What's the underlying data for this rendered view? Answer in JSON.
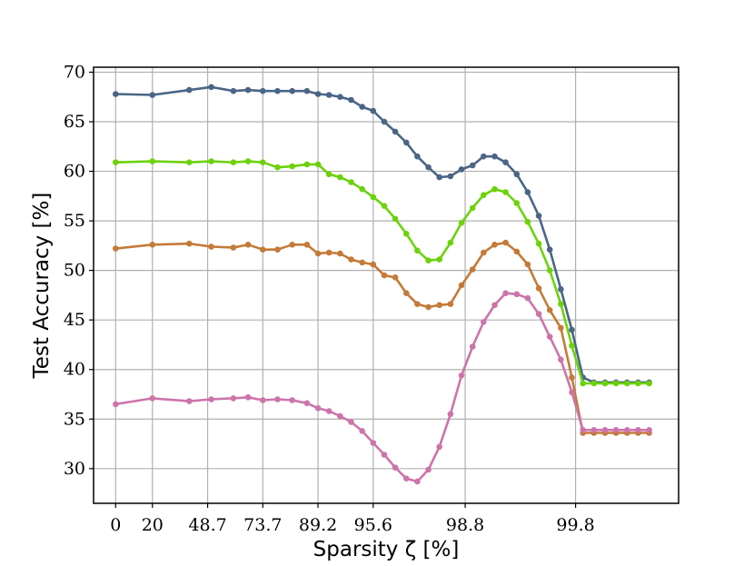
{
  "chart_data": {
    "type": "line",
    "xlabel": "Sparsity ζ [%]",
    "ylabel": "Test Accuracy [%]",
    "x_tick_labels": [
      "0",
      "20",
      "48.7",
      "73.7",
      "89.2",
      "95.6",
      "98.8",
      "99.8"
    ],
    "x_tick_index": [
      0,
      2,
      5,
      8,
      11,
      14,
      19,
      25
    ],
    "xlim": [
      -1.2,
      30.6
    ],
    "ylim": [
      26.5,
      70.5
    ],
    "y_ticks": [
      30,
      35,
      40,
      45,
      50,
      55,
      60,
      65,
      70
    ],
    "grid": true,
    "legend": "none",
    "x_index": [
      0,
      2,
      4,
      5.2,
      6.4,
      7.2,
      8,
      8.8,
      9.6,
      10.4,
      11,
      11.6,
      12.2,
      12.8,
      13.4,
      14,
      14.6,
      15.2,
      15.8,
      16.4,
      17,
      17.6,
      18.2,
      18.8,
      19.4,
      20,
      20.6,
      21.2,
      21.8,
      22.4,
      23,
      23.6,
      24.2,
      24.8,
      25.4,
      26,
      26.6,
      27.2,
      27.8,
      28.4,
      29
    ],
    "series": [
      {
        "color": "#4a6585",
        "values": [
          67.8,
          67.7,
          68.2,
          68.5,
          68.1,
          68.2,
          68.1,
          68.1,
          68.1,
          68.1,
          67.8,
          67.7,
          67.5,
          67.2,
          66.5,
          66.1,
          65.0,
          64.0,
          62.9,
          61.5,
          60.4,
          59.4,
          59.5,
          60.2,
          60.6,
          61.5,
          61.5,
          60.9,
          59.7,
          57.9,
          55.5,
          52.1,
          48.1,
          44.0,
          39.2,
          38.7,
          38.7,
          38.7,
          38.7,
          38.7,
          38.7
        ]
      },
      {
        "color": "#6cd20c",
        "values": [
          60.9,
          61.0,
          60.9,
          61.0,
          60.9,
          61.0,
          60.9,
          60.4,
          60.5,
          60.7,
          60.7,
          59.7,
          59.4,
          58.9,
          58.2,
          57.4,
          56.5,
          55.2,
          53.7,
          52.0,
          51.0,
          51.1,
          52.8,
          54.8,
          56.3,
          57.6,
          58.2,
          57.9,
          56.8,
          54.9,
          52.7,
          50.0,
          46.6,
          42.4,
          38.6,
          38.6,
          38.6,
          38.6,
          38.6,
          38.6,
          38.6
        ]
      },
      {
        "color": "#c47a38",
        "values": [
          52.2,
          52.6,
          52.7,
          52.4,
          52.3,
          52.6,
          52.1,
          52.1,
          52.6,
          52.6,
          51.7,
          51.8,
          51.7,
          51.1,
          50.8,
          50.6,
          49.5,
          49.3,
          47.7,
          46.6,
          46.3,
          46.5,
          46.6,
          48.5,
          50.1,
          51.8,
          52.6,
          52.8,
          51.9,
          50.6,
          48.2,
          46.0,
          44.2,
          39.2,
          33.6,
          33.6,
          33.6,
          33.6,
          33.6,
          33.6,
          33.6
        ]
      },
      {
        "color": "#cc74aa",
        "values": [
          36.5,
          37.1,
          36.8,
          37.0,
          37.1,
          37.2,
          36.9,
          37.0,
          36.9,
          36.6,
          36.1,
          35.8,
          35.3,
          34.7,
          33.8,
          32.6,
          31.4,
          30.1,
          29.0,
          28.7,
          29.9,
          32.2,
          35.5,
          39.4,
          42.3,
          44.8,
          46.5,
          47.7,
          47.6,
          47.2,
          45.6,
          43.3,
          41.0,
          37.7,
          33.9,
          33.9,
          33.9,
          33.9,
          33.9,
          33.9,
          33.9
        ]
      }
    ]
  }
}
